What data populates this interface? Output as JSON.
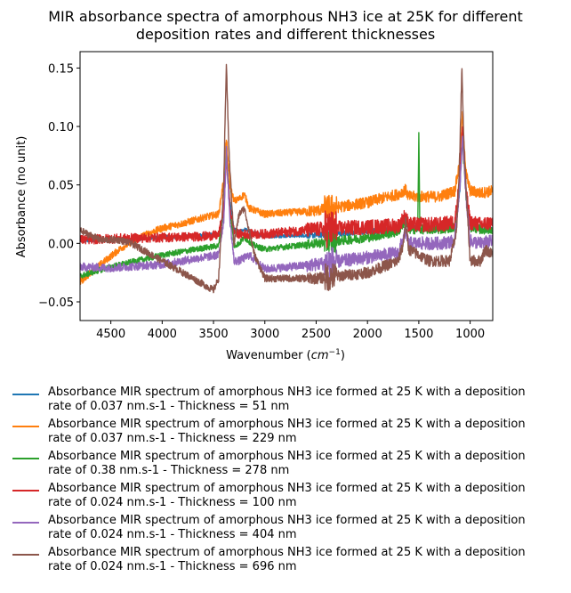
{
  "chart_data": {
    "type": "line",
    "title": "MIR absorbance spectra of amorphous NH3 ice at 25K for different\ndeposition rates and different thicknesses",
    "xlabel": "Wavenumber (cm⁻¹)",
    "ylabel": "Absorbance (no unit)",
    "xlim": [
      4800,
      780
    ],
    "ylim": [
      -0.066,
      0.164
    ],
    "xticks": [
      4500,
      4000,
      3500,
      3000,
      2500,
      2000,
      1500,
      1000
    ],
    "yticks": [
      -0.05,
      0.0,
      0.05,
      0.1,
      0.15
    ],
    "ytick_labels": [
      "−0.05",
      "0.00",
      "0.05",
      "0.10",
      "0.15"
    ],
    "legend_position": "below",
    "series": [
      {
        "name": "Absorbance MIR spectrum of amorphous NH3 ice formed at 25 K with a deposition\nrate of 0.037 nm.s-1 - Thickness = 51 nm",
        "color": "#1f77b4",
        "noise": 0.0015,
        "x": [
          4800,
          4500,
          4000,
          3600,
          3450,
          3400,
          3375,
          3340,
          3300,
          3250,
          3200,
          3000,
          2500,
          2000,
          1700,
          1630,
          1600,
          1300,
          1150,
          1100,
          1075,
          1040,
          1000,
          900,
          780
        ],
        "y": [
          0.002,
          0.003,
          0.005,
          0.007,
          0.008,
          0.025,
          0.075,
          0.035,
          0.012,
          0.01,
          0.012,
          0.006,
          0.007,
          0.01,
          0.012,
          0.02,
          0.013,
          0.012,
          0.016,
          0.045,
          0.095,
          0.045,
          0.016,
          0.012,
          0.012
        ]
      },
      {
        "name": "Absorbance MIR spectrum of amorphous NH3 ice formed at 25 K with a deposition\nrate of 0.037 nm.s-1 - Thickness = 229 nm",
        "color": "#ff7f0e",
        "noise": 0.003,
        "x": [
          4800,
          4600,
          4400,
          4200,
          4000,
          3800,
          3600,
          3450,
          3400,
          3375,
          3340,
          3300,
          3250,
          3200,
          3150,
          3000,
          2500,
          2000,
          1800,
          1700,
          1630,
          1600,
          1300,
          1150,
          1100,
          1075,
          1040,
          1000,
          900,
          780
        ],
        "y": [
          -0.033,
          -0.018,
          -0.004,
          0.006,
          0.013,
          0.017,
          0.022,
          0.025,
          0.055,
          0.09,
          0.05,
          0.036,
          0.038,
          0.042,
          0.03,
          0.025,
          0.028,
          0.035,
          0.04,
          0.042,
          0.046,
          0.04,
          0.04,
          0.045,
          0.07,
          0.11,
          0.06,
          0.045,
          0.043,
          0.045
        ]
      },
      {
        "name": "Absorbance MIR spectrum of amorphous NH3 ice formed at 25 K with a deposition\nrate of 0.38 nm.s-1 - Thickness = 278 nm",
        "color": "#2ca02c",
        "noise": 0.0025,
        "x": [
          4800,
          4500,
          4000,
          3600,
          3450,
          3400,
          3375,
          3340,
          3300,
          3250,
          3200,
          3100,
          3000,
          2500,
          2000,
          1700,
          1630,
          1600,
          1510,
          1500,
          1490,
          1300,
          1150,
          1100,
          1075,
          1040,
          1000,
          900,
          780
        ],
        "y": [
          -0.028,
          -0.02,
          -0.01,
          -0.004,
          -0.002,
          0.03,
          0.08,
          0.03,
          -0.002,
          0.0,
          0.005,
          -0.002,
          -0.005,
          0.0,
          0.005,
          0.01,
          0.02,
          0.012,
          0.012,
          0.092,
          0.012,
          0.012,
          0.014,
          0.05,
          0.09,
          0.04,
          0.014,
          0.012,
          0.012
        ]
      },
      {
        "name": "Absorbance MIR spectrum of amorphous NH3 ice formed at 25 K with a deposition\nrate of 0.024 nm.s-1 - Thickness = 100 nm",
        "color": "#d62728",
        "noise": 0.004,
        "x": [
          4800,
          4500,
          4000,
          3600,
          3450,
          3400,
          3375,
          3340,
          3300,
          3250,
          3000,
          2500,
          2000,
          1700,
          1630,
          1600,
          1300,
          1150,
          1100,
          1075,
          1040,
          1000,
          900,
          780
        ],
        "y": [
          0.003,
          0.004,
          0.005,
          0.006,
          0.007,
          0.03,
          0.075,
          0.03,
          0.01,
          0.008,
          0.008,
          0.012,
          0.014,
          0.015,
          0.024,
          0.016,
          0.016,
          0.018,
          0.055,
          0.1,
          0.045,
          0.018,
          0.016,
          0.018
        ]
      },
      {
        "name": "Absorbance MIR spectrum of amorphous NH3 ice formed at 25 K with a deposition\nrate of 0.024 nm.s-1 - Thickness = 404 nm",
        "color": "#9467bd",
        "noise": 0.0035,
        "x": [
          4800,
          4500,
          4000,
          3600,
          3450,
          3400,
          3375,
          3340,
          3300,
          3250,
          3150,
          3000,
          2500,
          2000,
          1700,
          1630,
          1600,
          1300,
          1150,
          1100,
          1075,
          1040,
          1000,
          900,
          780
        ],
        "y": [
          -0.02,
          -0.021,
          -0.018,
          -0.012,
          -0.01,
          0.02,
          0.08,
          0.02,
          -0.015,
          -0.015,
          -0.01,
          -0.022,
          -0.018,
          -0.012,
          -0.008,
          0.01,
          0.0,
          0.0,
          0.002,
          0.05,
          0.09,
          0.04,
          0.002,
          0.0,
          0.002
        ]
      },
      {
        "name": "Absorbance MIR spectrum of amorphous NH3 ice formed at 25 K with a deposition\nrate of 0.024 nm.s-1 - Thickness = 696 nm",
        "color": "#8c564b",
        "noise": 0.003,
        "x": [
          4800,
          4600,
          4420,
          4300,
          4100,
          3900,
          3700,
          3500,
          3450,
          3400,
          3375,
          3350,
          3300,
          3250,
          3200,
          3100,
          3000,
          2500,
          2000,
          1700,
          1650,
          1630,
          1600,
          1400,
          1200,
          1130,
          1100,
          1080,
          1060,
          1000,
          900,
          850,
          780
        ],
        "y": [
          0.011,
          0.003,
          0.003,
          0.0,
          -0.01,
          -0.02,
          -0.03,
          -0.04,
          -0.03,
          0.05,
          0.155,
          0.08,
          0.0,
          0.025,
          0.03,
          -0.01,
          -0.03,
          -0.03,
          -0.025,
          -0.015,
          0.0,
          0.02,
          -0.005,
          -0.015,
          -0.015,
          0.01,
          0.08,
          0.15,
          0.08,
          -0.015,
          -0.015,
          -0.005,
          -0.01
        ]
      }
    ]
  }
}
